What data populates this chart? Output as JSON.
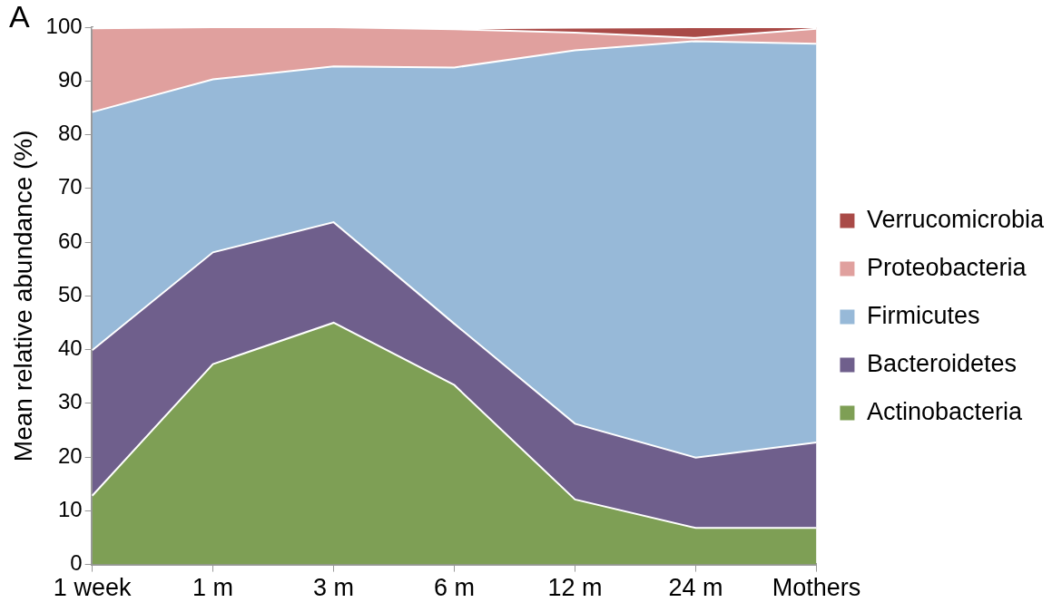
{
  "chart_data": {
    "type": "area",
    "stacked": true,
    "ylabel": "Mean relative abundance (%)",
    "annotations": [
      "A"
    ],
    "categories": [
      "1 week",
      "1 m",
      "3 m",
      "6 m",
      "12 m",
      "24 m",
      "Mothers"
    ],
    "series": [
      {
        "name": "Actinobacteria",
        "color": "#7e9f55",
        "values": [
          12.8,
          37.3,
          45,
          33.4,
          12.1,
          6.8,
          6.8
        ]
      },
      {
        "name": "Bacteroidetes",
        "color": "#6f5f8c",
        "values": [
          27.1,
          20.8,
          18.7,
          11.4,
          14.1,
          13.1,
          15.9
        ]
      },
      {
        "name": "Firmicutes",
        "color": "#97b9d8",
        "values": [
          44.3,
          32.2,
          29,
          47.7,
          69.5,
          77.5,
          74.2
        ]
      },
      {
        "name": "Proteobacteria",
        "color": "#e0a09e",
        "values": [
          15.6,
          9.7,
          7.3,
          7.1,
          3.3,
          0.6,
          2.8
        ]
      },
      {
        "name": "Verrucomicrobia",
        "color": "#a94a47",
        "values": [
          0,
          0,
          0,
          0.2,
          0.9,
          2,
          0.3
        ]
      }
    ],
    "ylim": [
      0,
      100
    ],
    "yticks": [
      0,
      10,
      20,
      30,
      40,
      50,
      60,
      70,
      80,
      90,
      100
    ],
    "grid": false,
    "legend": "right"
  }
}
